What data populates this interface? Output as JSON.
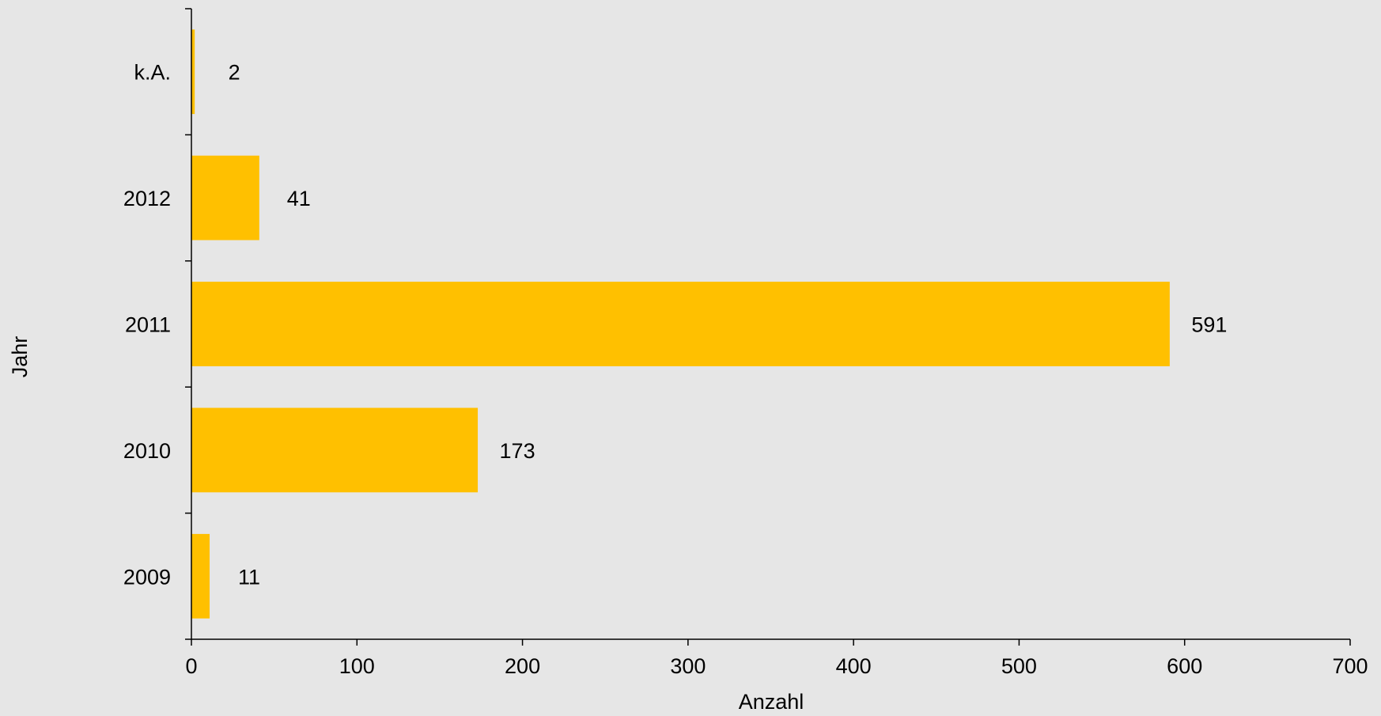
{
  "chart_data": {
    "type": "bar",
    "orientation": "horizontal",
    "categories": [
      "2009",
      "2010",
      "2011",
      "2012",
      "k.A."
    ],
    "values": [
      11,
      173,
      591,
      41,
      2
    ],
    "data_labels": [
      "11",
      "173",
      "591",
      "41",
      "2"
    ],
    "title": "",
    "xlabel": "Anzahl",
    "ylabel": "Jahr",
    "xlim": [
      0,
      700
    ],
    "x_ticks": [
      "0",
      "100",
      "200",
      "300",
      "400",
      "500",
      "600",
      "700"
    ],
    "grid": false,
    "legend": "none",
    "colors": {
      "bar": "#ffc000",
      "background": "#e6e6e6",
      "axis": "#000000"
    }
  }
}
